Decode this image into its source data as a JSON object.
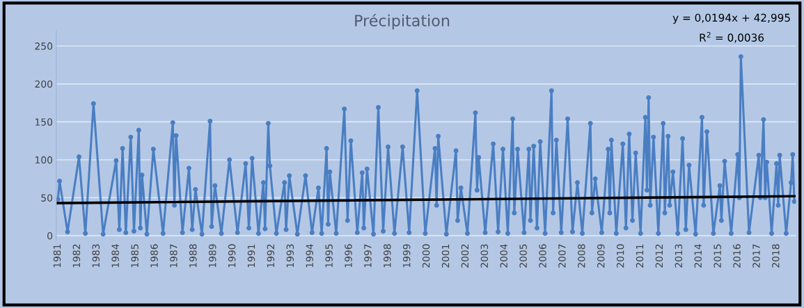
{
  "chart_data": {
    "type": "line",
    "title": "Précipitation",
    "annotations": [
      "y = 0,0194x + 42,995",
      "R$^{2}$ = 0,0036"
    ],
    "series": [
      {
        "color": "#4a7ec2",
        "marker": "circle",
        "x": [
          "1981-01",
          "1981-02",
          "1981-07",
          "1982-02",
          "1982-06",
          "1982-11",
          "1983-05",
          "1984-01",
          "1984-03",
          "1984-05",
          "1984-07",
          "1984-10",
          "1984-12",
          "1985-03",
          "1985-04",
          "1985-05",
          "1985-08",
          "1985-12",
          "1986-06",
          "1986-12",
          "1987-01",
          "1987-02",
          "1987-06",
          "1987-10",
          "1987-12",
          "1988-02",
          "1988-06",
          "1988-11",
          "1988-12",
          "1989-02",
          "1989-06",
          "1989-11",
          "1990-04",
          "1990-09",
          "1990-11",
          "1991-01",
          "1991-05",
          "1991-08",
          "1991-09",
          "1991-11",
          "1991-12",
          "1992-04",
          "1992-09",
          "1992-10",
          "1992-12",
          "1993-05",
          "1993-10",
          "1994-02",
          "1994-06",
          "1994-08",
          "1994-11",
          "1994-12",
          "1995-01",
          "1995-05",
          "1995-10",
          "1995-12",
          "1996-02",
          "1996-06",
          "1996-09",
          "1996-10",
          "1996-12",
          "1997-04",
          "1997-07",
          "1997-10",
          "1998-01",
          "1998-05",
          "1998-10",
          "1999-02",
          "1999-07",
          "1999-12",
          "2000-06",
          "2000-07",
          "2000-08",
          "2001-01",
          "2001-07",
          "2001-08",
          "2001-10",
          "2002-02",
          "2002-07",
          "2002-08",
          "2002-09",
          "2003-01",
          "2003-06",
          "2003-09",
          "2003-12",
          "2004-03",
          "2004-06",
          "2004-07",
          "2004-09",
          "2005-01",
          "2005-04",
          "2005-05",
          "2005-07",
          "2005-09",
          "2005-11",
          "2006-02",
          "2006-06",
          "2006-07",
          "2006-09",
          "2006-12",
          "2007-04",
          "2007-07",
          "2007-10",
          "2008-01",
          "2008-06",
          "2008-07",
          "2008-09",
          "2009-01",
          "2009-05",
          "2009-06",
          "2009-07",
          "2009-10",
          "2010-02",
          "2010-04",
          "2010-06",
          "2010-08",
          "2010-10",
          "2011-01",
          "2011-04",
          "2011-05",
          "2011-06",
          "2011-07",
          "2011-09",
          "2011-12",
          "2012-03",
          "2012-04",
          "2012-06",
          "2012-07",
          "2012-09",
          "2012-12",
          "2013-03",
          "2013-05",
          "2013-07",
          "2013-11",
          "2014-03",
          "2014-04",
          "2014-06",
          "2014-10",
          "2015-02",
          "2015-03",
          "2015-05",
          "2015-09",
          "2016-01",
          "2016-02",
          "2016-03",
          "2016-08",
          "2017-02",
          "2017-03",
          "2017-05",
          "2017-06",
          "2017-07",
          "2017-10",
          "2018-01",
          "2018-02",
          "2018-03",
          "2018-07",
          "2018-10",
          "2018-11",
          "2018-12"
        ],
        "values": [
          48,
          72,
          5,
          104,
          3,
          174,
          2,
          99,
          8,
          115,
          4,
          130,
          6,
          139,
          10,
          80,
          2,
          114,
          3,
          149,
          40,
          132,
          4,
          89,
          8,
          61,
          2,
          151,
          12,
          66,
          3,
          100,
          4,
          95,
          10,
          102,
          3,
          70,
          9,
          148,
          92,
          3,
          70,
          8,
          79,
          2,
          79,
          4,
          63,
          3,
          115,
          15,
          84,
          3,
          167,
          20,
          125,
          4,
          83,
          10,
          88,
          2,
          169,
          6,
          117,
          3,
          117,
          4,
          191,
          3,
          115,
          40,
          131,
          2,
          112,
          20,
          63,
          3,
          162,
          60,
          103,
          4,
          121,
          5,
          114,
          3,
          154,
          30,
          114,
          4,
          114,
          20,
          118,
          10,
          124,
          3,
          191,
          30,
          126,
          4,
          154,
          5,
          70,
          3,
          148,
          30,
          75,
          4,
          114,
          30,
          126,
          3,
          121,
          10,
          134,
          20,
          109,
          3,
          156,
          60,
          182,
          40,
          130,
          3,
          148,
          30,
          131,
          40,
          84,
          3,
          128,
          8,
          93,
          2,
          156,
          40,
          137,
          3,
          66,
          20,
          98,
          3,
          107,
          50,
          236,
          4,
          106,
          50,
          153,
          50,
          97,
          3,
          95,
          40,
          106,
          3,
          70,
          107,
          45
        ]
      },
      {
        "color": "#000000",
        "marker": "none",
        "x": [
          "1981-01",
          "2018-12"
        ],
        "values": [
          43,
          52
        ]
      }
    ],
    "xlim": [
      "1980-12",
      "2019-01"
    ],
    "xticks": [
      "1981",
      "1982",
      "1983",
      "1984",
      "1985",
      "1986",
      "1987",
      "1988",
      "1989",
      "1990",
      "1991",
      "1992",
      "1993",
      "1994",
      "1995",
      "1996",
      "1997",
      "1998",
      "1999",
      "2000",
      "2001",
      "2002",
      "2003",
      "2004",
      "2005",
      "2006",
      "2007",
      "2008",
      "2009",
      "2010",
      "2011",
      "2012",
      "2013",
      "2014",
      "2015",
      "2016",
      "2017",
      "2018"
    ],
    "ylim": [
      -6,
      270
    ],
    "yticks": [
      0,
      50,
      100,
      150,
      200,
      250
    ],
    "grid": "y",
    "legend": false,
    "line_style": "solid"
  }
}
